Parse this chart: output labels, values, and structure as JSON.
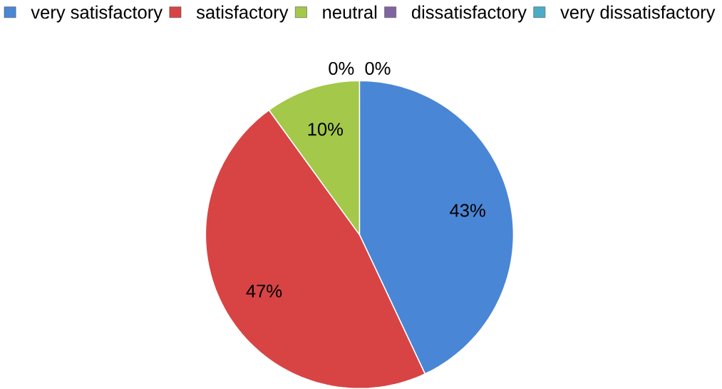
{
  "chart_data": {
    "type": "pie",
    "categories": [
      "very satisfactory",
      "satisfactory",
      "neutral",
      "dissatisfactory",
      "very dissatisfactory"
    ],
    "values": [
      43,
      47,
      10,
      0,
      0
    ],
    "colors": [
      "#4a86d6",
      "#d84444",
      "#a3c84a",
      "#8064a2",
      "#4bacc6"
    ],
    "value_labels": [
      "43%",
      "47%",
      "10%",
      "0%",
      "0%"
    ],
    "legend": "top"
  }
}
